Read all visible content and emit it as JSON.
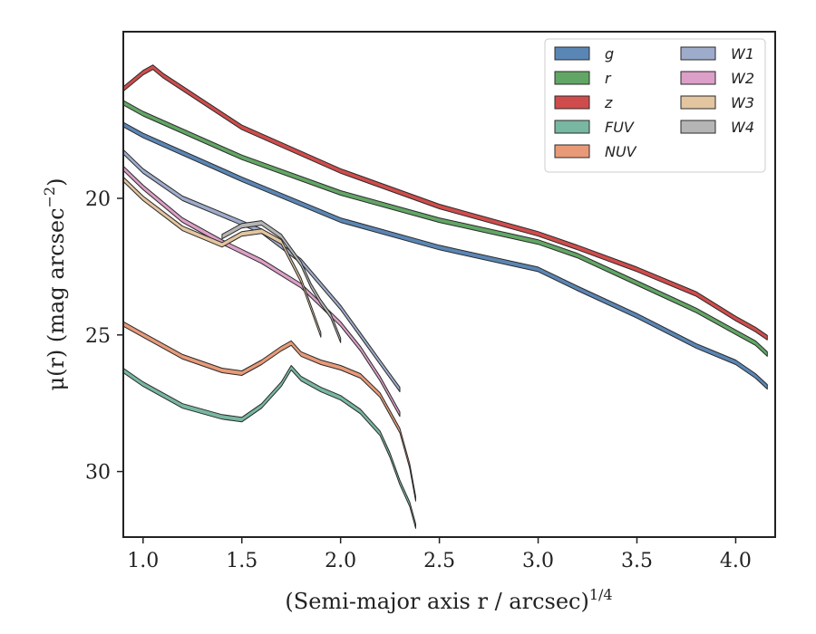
{
  "chart_data": {
    "type": "area",
    "title": "",
    "xlabel_main": "(Semi-major axis r / arcsec)",
    "xlabel_sup": "1/4",
    "ylabel_main": "μ(r) (mag arcsec",
    "ylabel_sup": "−2",
    "ylabel_close": ")",
    "xlim": [
      0.9,
      4.2
    ],
    "ylim": [
      32.4,
      13.9
    ],
    "y_inverted": true,
    "xticks": [
      {
        "value": 1.0,
        "label": "1.0"
      },
      {
        "value": 1.5,
        "label": "1.5"
      },
      {
        "value": 2.0,
        "label": "2.0"
      },
      {
        "value": 2.5,
        "label": "2.5"
      },
      {
        "value": 3.0,
        "label": "3.0"
      },
      {
        "value": 3.5,
        "label": "3.5"
      },
      {
        "value": 4.0,
        "label": "4.0"
      }
    ],
    "yticks": [
      {
        "value": 20,
        "label": "20"
      },
      {
        "value": 25,
        "label": "25"
      },
      {
        "value": 30,
        "label": "30"
      }
    ],
    "legend_position": "top-right",
    "legend_columns": 2,
    "series": [
      {
        "name": "g",
        "color": "#5a86b5",
        "x": [
          0.9,
          1.0,
          1.5,
          2.0,
          2.5,
          3.0,
          3.2,
          3.5,
          3.8,
          4.0,
          4.1,
          4.16
        ],
        "y": [
          17.3,
          17.7,
          19.3,
          20.8,
          21.8,
          22.6,
          23.3,
          24.3,
          25.4,
          26.0,
          26.5,
          26.9
        ]
      },
      {
        "name": "r",
        "color": "#62a665",
        "x": [
          0.9,
          1.0,
          1.5,
          2.0,
          2.5,
          3.0,
          3.2,
          3.5,
          3.8,
          4.0,
          4.1,
          4.16
        ],
        "y": [
          16.5,
          16.9,
          18.5,
          19.8,
          20.8,
          21.6,
          22.1,
          23.1,
          24.1,
          24.9,
          25.3,
          25.7
        ]
      },
      {
        "name": "z",
        "color": "#d04c4c",
        "x": [
          0.9,
          1.0,
          1.05,
          1.1,
          1.5,
          2.0,
          2.5,
          3.0,
          3.2,
          3.5,
          3.8,
          4.0,
          4.1,
          4.16
        ],
        "y": [
          16.0,
          15.4,
          15.2,
          15.5,
          17.4,
          19.0,
          20.3,
          21.3,
          21.8,
          22.6,
          23.5,
          24.4,
          24.8,
          25.1
        ]
      },
      {
        "name": "FUV",
        "color": "#78b7a1",
        "x": [
          0.9,
          1.0,
          1.2,
          1.4,
          1.5,
          1.6,
          1.7,
          1.75,
          1.8,
          1.9,
          2.0,
          2.1,
          2.2,
          2.25,
          2.3,
          2.35,
          2.38
        ],
        "y": [
          26.3,
          26.8,
          27.6,
          28.0,
          28.1,
          27.6,
          26.8,
          26.2,
          26.6,
          27.0,
          27.3,
          27.8,
          28.6,
          29.4,
          30.4,
          31.2,
          32.0
        ]
      },
      {
        "name": "NUV",
        "color": "#e89a78",
        "x": [
          0.9,
          1.0,
          1.2,
          1.4,
          1.5,
          1.6,
          1.7,
          1.75,
          1.8,
          1.9,
          2.0,
          2.1,
          2.2,
          2.3,
          2.35,
          2.38
        ],
        "y": [
          24.6,
          25.0,
          25.8,
          26.3,
          26.4,
          26.0,
          25.5,
          25.3,
          25.7,
          26.0,
          26.2,
          26.5,
          27.2,
          28.5,
          29.8,
          31.0
        ]
      },
      {
        "name": "W1",
        "color": "#9eaccb",
        "x": [
          0.9,
          1.0,
          1.2,
          1.4,
          1.6,
          1.8,
          2.0,
          2.1,
          2.2,
          2.3
        ],
        "y": [
          18.3,
          19.0,
          20.0,
          20.6,
          21.2,
          22.3,
          24.0,
          25.0,
          26.0,
          27.0
        ]
      },
      {
        "name": "W2",
        "color": "#dc9fc8",
        "x": [
          0.9,
          1.0,
          1.2,
          1.4,
          1.6,
          1.8,
          2.0,
          2.1,
          2.2,
          2.3
        ],
        "y": [
          18.9,
          19.6,
          20.8,
          21.6,
          22.3,
          23.2,
          24.6,
          25.5,
          26.6,
          27.9
        ]
      },
      {
        "name": "W3",
        "color": "#e3c5a0",
        "x": [
          0.9,
          1.0,
          1.2,
          1.4,
          1.5,
          1.6,
          1.7,
          1.75,
          1.8,
          1.85,
          1.9
        ],
        "y": [
          19.3,
          20.0,
          21.1,
          21.7,
          21.3,
          21.2,
          21.6,
          22.3,
          23.0,
          24.0,
          25.0
        ]
      },
      {
        "name": "W4",
        "color": "#b5b5b5",
        "x": [
          1.4,
          1.5,
          1.6,
          1.7,
          1.75,
          1.8,
          1.85,
          1.9,
          1.95,
          2.0
        ],
        "y": [
          21.4,
          21.0,
          20.9,
          21.4,
          21.9,
          22.4,
          23.2,
          23.8,
          24.3,
          25.2
        ]
      }
    ]
  }
}
